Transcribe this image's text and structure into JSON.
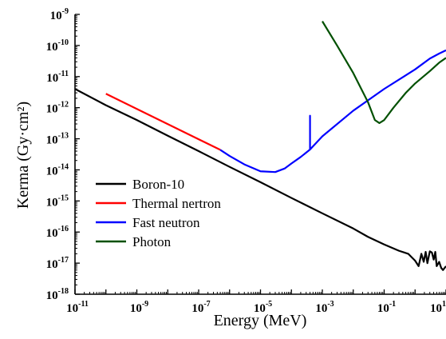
{
  "chart_data": {
    "type": "line",
    "title": "",
    "xlabel": "Energy (MeV)",
    "ylabel": "Kerma (Gy·cm²)",
    "xscale": "log",
    "yscale": "log",
    "xlim": [
      1e-11,
      10
    ],
    "ylim": [
      1e-18,
      1e-09
    ],
    "grid": false,
    "legend_position": "bottom-left",
    "x_tick_labels": [
      {
        "base": "10",
        "exp": "-11",
        "value": 1e-11
      },
      {
        "base": "10",
        "exp": "-9",
        "value": 1e-09
      },
      {
        "base": "10",
        "exp": "-7",
        "value": 1e-07
      },
      {
        "base": "10",
        "exp": "-5",
        "value": 1e-05
      },
      {
        "base": "10",
        "exp": "-3",
        "value": 0.001
      },
      {
        "base": "10",
        "exp": "-1",
        "value": 0.1
      },
      {
        "base": "10",
        "exp": "1",
        "value": 10
      }
    ],
    "y_tick_labels": [
      {
        "base": "10",
        "exp": "-9",
        "value": 1e-09
      },
      {
        "base": "10",
        "exp": "-10",
        "value": 1e-10
      },
      {
        "base": "10",
        "exp": "-11",
        "value": 1e-11
      },
      {
        "base": "10",
        "exp": "-12",
        "value": 1e-12
      },
      {
        "base": "10",
        "exp": "-13",
        "value": 1e-13
      },
      {
        "base": "10",
        "exp": "-14",
        "value": 1e-14
      },
      {
        "base": "10",
        "exp": "-15",
        "value": 1e-15
      },
      {
        "base": "10",
        "exp": "-16",
        "value": 1e-16
      },
      {
        "base": "10",
        "exp": "-17",
        "value": 1e-17
      },
      {
        "base": "10",
        "exp": "-18",
        "value": 1e-18
      }
    ],
    "series": [
      {
        "name": "Boron-10",
        "color": "#000000",
        "points": [
          [
            1e-11,
            4e-12
          ],
          [
            1e-10,
            1.2e-12
          ],
          [
            1e-09,
            4e-13
          ],
          [
            1e-08,
            1.25e-13
          ],
          [
            1e-07,
            4e-14
          ],
          [
            1e-06,
            1.25e-14
          ],
          [
            1e-05,
            4e-15
          ],
          [
            0.0001,
            1.25e-15
          ],
          [
            0.001,
            4e-16
          ],
          [
            0.01,
            1.3e-16
          ],
          [
            0.03,
            7e-17
          ],
          [
            0.1,
            4e-17
          ],
          [
            0.3,
            2.5e-17
          ],
          [
            0.6,
            2e-17
          ],
          [
            1,
            1.2e-17
          ],
          [
            1.3,
            8e-18
          ],
          [
            1.6,
            2e-17
          ],
          [
            1.9,
            1.1e-17
          ],
          [
            2.2,
            2.3e-17
          ],
          [
            2.5,
            1e-17
          ],
          [
            3,
            2.4e-17
          ],
          [
            3.5,
            2.2e-17
          ],
          [
            4,
            1.3e-17
          ],
          [
            4.5,
            2.3e-17
          ],
          [
            5,
            8e-18
          ],
          [
            6,
            1.1e-17
          ],
          [
            7,
            7e-18
          ],
          [
            8,
            6e-18
          ],
          [
            10,
            8e-18
          ]
        ]
      },
      {
        "name": "Thermal nertron",
        "color": "#ff0000",
        "points": [
          [
            1e-10,
            2.8e-12
          ],
          [
            5e-07,
            4.4e-14
          ]
        ]
      },
      {
        "name": "Fast neutron",
        "color": "#0000ff",
        "points": [
          [
            5e-07,
            4.4e-14
          ],
          [
            1e-06,
            2.8e-14
          ],
          [
            3e-06,
            1.5e-14
          ],
          [
            1e-05,
            9e-15
          ],
          [
            3e-05,
            8.5e-15
          ],
          [
            6e-05,
            1.1e-14
          ],
          [
            0.0001,
            1.6e-14
          ],
          [
            0.0002,
            2.6e-14
          ],
          [
            0.0004,
            4.5e-14
          ],
          [
            0.0004,
            5.5e-13
          ],
          [
            0.0004,
            4.5e-14
          ],
          [
            0.001,
            1.2e-13
          ],
          [
            0.01,
            8e-13
          ],
          [
            0.1,
            4e-12
          ],
          [
            1,
            1.7e-11
          ],
          [
            3,
            3.8e-11
          ],
          [
            6,
            5.5e-11
          ],
          [
            10,
            7e-11
          ]
        ]
      },
      {
        "name": "Photon",
        "color": "#005000",
        "points": [
          [
            0.001,
            6e-10
          ],
          [
            0.003,
            1e-10
          ],
          [
            0.01,
            1.3e-11
          ],
          [
            0.03,
            1.5e-12
          ],
          [
            0.05,
            4e-13
          ],
          [
            0.07,
            3.2e-13
          ],
          [
            0.1,
            4e-13
          ],
          [
            0.2,
            1e-12
          ],
          [
            0.5,
            3e-12
          ],
          [
            1,
            6e-12
          ],
          [
            3,
            1.5e-11
          ],
          [
            6,
            2.8e-11
          ],
          [
            10,
            4e-11
          ]
        ]
      }
    ]
  }
}
